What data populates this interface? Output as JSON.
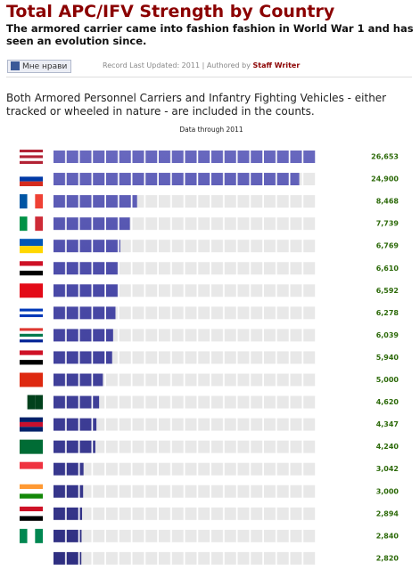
{
  "header": {
    "title": "Total APC/IFV Strength by Country",
    "subtitle": "The armored carrier came into fashion fashion in World War 1 and has seen an evolution since."
  },
  "like_button": "Мне нрави",
  "byline": {
    "text": "Record Last Updated: 2011 | Authored by",
    "author": "Staff Writer"
  },
  "intro": "Both Armored Personnel Carriers and Infantry Fighting Vehicles - either tracked or wheeled in nature - are included in the counts.",
  "chart_data": {
    "type": "bar",
    "orientation": "horizontal",
    "subtitle": "Data through 2011",
    "values": [
      26653,
      24900,
      8468,
      7739,
      6769,
      6610,
      6592,
      6278,
      6039,
      5940,
      5000,
      4620,
      4347,
      4240,
      3042,
      3000,
      2894,
      2840,
      2820
    ],
    "value_labels": [
      "26,653",
      "24,900",
      "8,468",
      "7,739",
      "6,769",
      "6,610",
      "6,592",
      "6,278",
      "6,039",
      "5,940",
      "5,000",
      "4,620",
      "4,347",
      "4,240",
      "3,042",
      "3,000",
      "2,894",
      "2,840",
      "2,820"
    ],
    "color": "#4a4aa8",
    "xlim": [
      0,
      26653
    ]
  }
}
